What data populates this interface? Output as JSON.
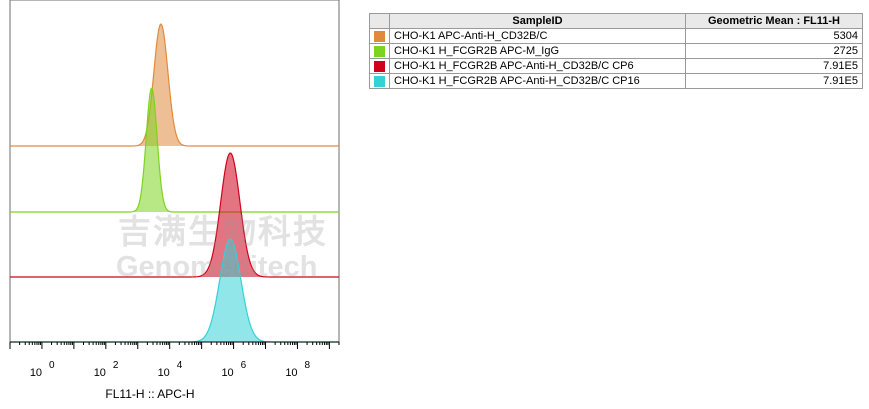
{
  "chart_data": {
    "type": "histogram",
    "x_scale": "log",
    "xlim": [
      0.1,
      2000000000.0
    ],
    "xlabel": "FL11-H :: APC-H",
    "x_ticks": [
      {
        "label": "0",
        "value": 1
      },
      {
        "label": "2",
        "value": 100
      },
      {
        "label": "4",
        "value": 10000
      },
      {
        "label": "6",
        "value": 1000000
      },
      {
        "label": "8",
        "value": 100000000
      }
    ],
    "tick_base": "10",
    "layout": "staggered offset overlay",
    "series": [
      {
        "name": "CHO-K1 APC-Anti-H_CD32B/C",
        "color": "#E08A3C",
        "peak_x": 5304,
        "mean_label": "5304"
      },
      {
        "name": "CHO-K1 H_FCGR2B APC-M_IgG",
        "color": "#7ED321",
        "peak_x": 2725,
        "mean_label": "2725"
      },
      {
        "name": "CHO-K1 H_FCGR2B APC-Anti-H_CD32B/C CP6",
        "color": "#D0021B",
        "peak_x": 791000,
        "mean_label": "7.91E5"
      },
      {
        "name": "CHO-K1 H_FCGR2B APC-Anti-H_CD32B/C CP16",
        "color": "#34D1D6",
        "peak_x": 791000,
        "mean_label": "7.91E5"
      }
    ]
  },
  "legend": {
    "col_sample": "SampleID",
    "col_value": "Geometric Mean : FL11-H"
  },
  "watermark": {
    "cn": "吉满生物科技",
    "en": "Genomeditech"
  }
}
